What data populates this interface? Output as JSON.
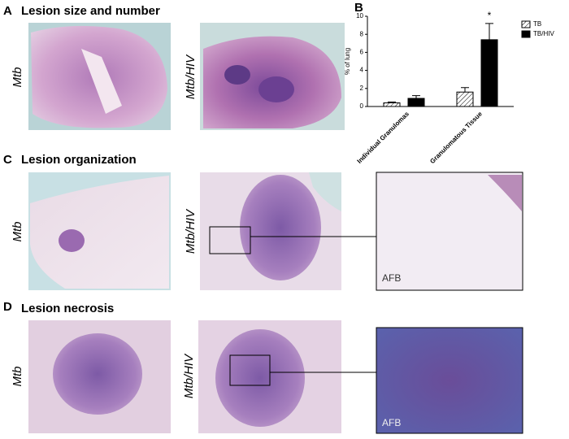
{
  "panels": {
    "A": {
      "letter": "A",
      "title": "Lesion size and number",
      "left_label": "Mtb",
      "right_label": "Mtb/HIV"
    },
    "B": {
      "letter": "B"
    },
    "C": {
      "letter": "C",
      "title": "Lesion organization",
      "left_label": "Mtb",
      "right_label": "Mtb/HIV",
      "inset_label": "AFB"
    },
    "D": {
      "letter": "D",
      "title": "Lesion necrosis",
      "left_label": "Mtb",
      "right_label": "Mtb/HIV",
      "inset_label": "AFB"
    }
  },
  "chart_data": {
    "type": "bar",
    "ylabel": "% of lung",
    "categories": [
      "Individual Granulomas",
      "Granulomatous Tissue"
    ],
    "series": [
      {
        "name": "TB",
        "color": "#ffffff",
        "hatch": true,
        "values": [
          0.4,
          1.6
        ],
        "errors": [
          0.1,
          0.5
        ]
      },
      {
        "name": "TB/HIV",
        "color": "#000000",
        "hatch": false,
        "values": [
          0.9,
          7.4
        ],
        "errors": [
          0.3,
          1.8
        ]
      }
    ],
    "annotation": "*",
    "ylim": [
      0,
      10
    ],
    "yticks": [
      0,
      2,
      4,
      6,
      8,
      10
    ],
    "legend": "upper right"
  }
}
